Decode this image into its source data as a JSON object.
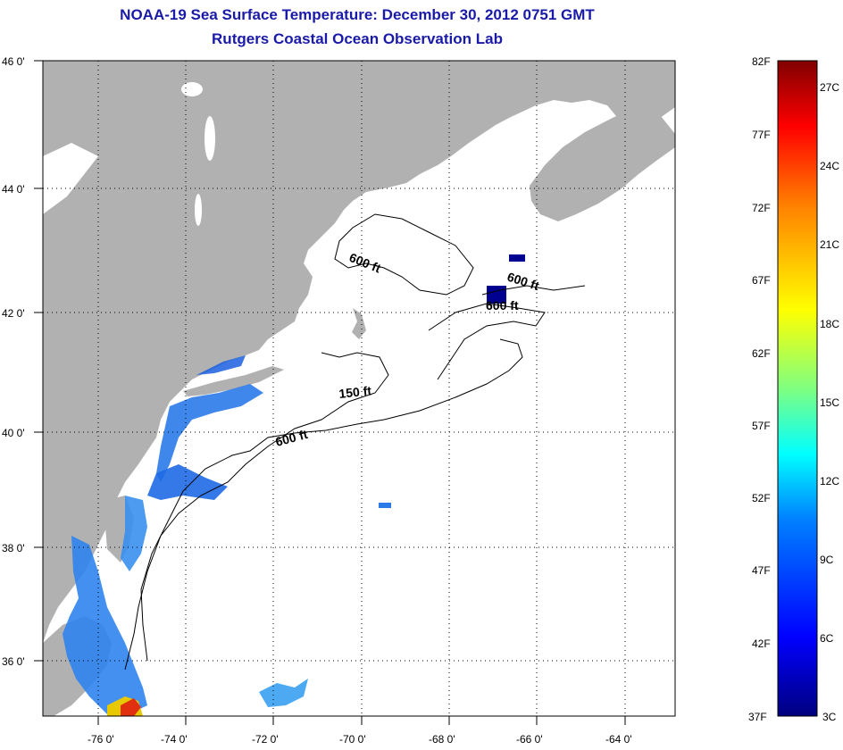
{
  "titles": {
    "line1": "NOAA-19 Sea Surface Temperature:  December 30, 2012 0751 GMT",
    "line2": "Rutgers Coastal Ocean Observation Lab"
  },
  "map": {
    "lon_labels": [
      "-76 0'",
      "-74 0'",
      "-72 0'",
      "-70 0'",
      "-68 0'",
      "-66 0'",
      "-64 0'"
    ],
    "lat_labels": [
      "46 0'",
      "44 0'",
      "42 0'",
      "40 0'",
      "38 0'",
      "36 0'"
    ],
    "contour_labels": [
      "600 ft",
      "600 ft",
      "600 ft",
      "150 ft",
      "600 ft"
    ],
    "colors": {
      "land": "#b1b1b1",
      "water": "#ffffff",
      "frame": "#000000"
    }
  },
  "colorbar": {
    "fahrenheit": [
      "82F",
      "77F",
      "72F",
      "67F",
      "62F",
      "57F",
      "52F",
      "47F",
      "42F",
      "37F"
    ],
    "celsius": [
      "27C",
      "24C",
      "21C",
      "18C",
      "15C",
      "12C",
      "9C",
      "6C",
      "3C"
    ],
    "colors": [
      "#00007f",
      "#0000ff",
      "#0080ff",
      "#00ffff",
      "#80ff80",
      "#ffff00",
      "#ff8000",
      "#ff0000",
      "#800000"
    ]
  }
}
